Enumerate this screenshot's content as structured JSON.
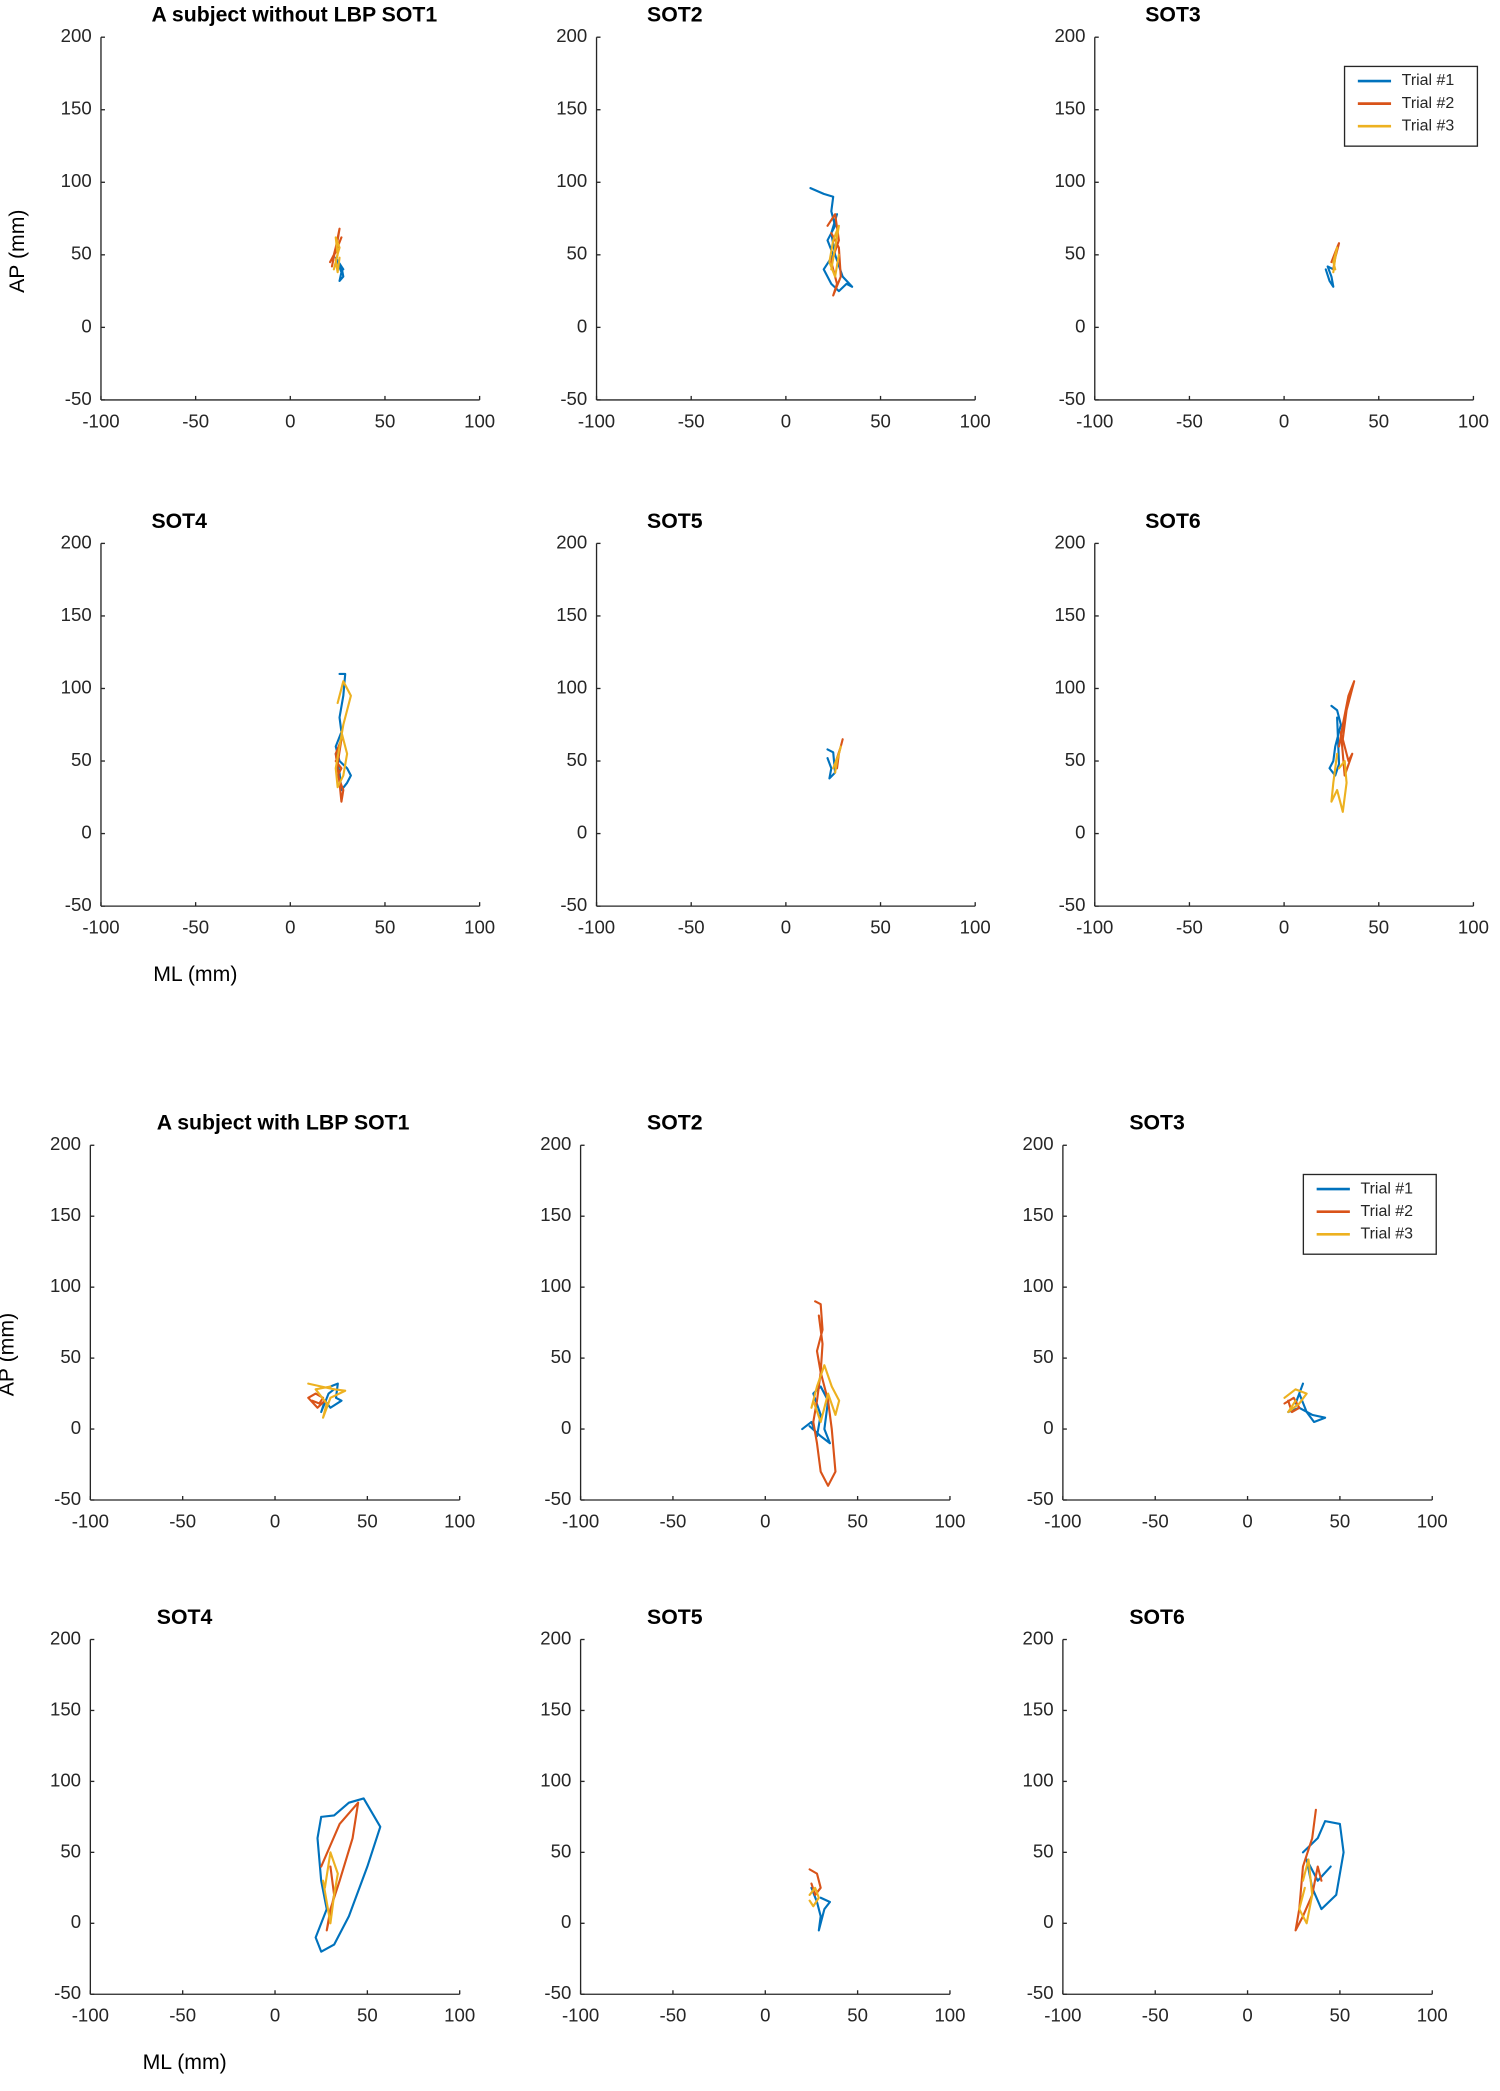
{
  "chart_data": [
    {
      "type": "line",
      "title": "A subject without LBP SOT1",
      "ylabel": "AP (mm)",
      "xlim": [
        -100,
        100
      ],
      "ylim": [
        -50,
        200
      ],
      "xticks": [
        -100,
        -50,
        0,
        50,
        100
      ],
      "yticks": [
        -50,
        0,
        50,
        100,
        150,
        200
      ],
      "series": [
        {
          "color": "#0072bd",
          "x": [
            25,
            27,
            26,
            28,
            27,
            24,
            26,
            28
          ],
          "values": [
            45,
            38,
            32,
            35,
            42,
            48,
            44,
            40
          ]
        },
        {
          "color": "#d95319",
          "x": [
            22,
            24,
            26,
            25,
            23,
            21,
            24,
            27
          ],
          "values": [
            42,
            55,
            68,
            60,
            50,
            45,
            52,
            62
          ]
        },
        {
          "color": "#edb120",
          "x": [
            23,
            25,
            24,
            26,
            24,
            25,
            26
          ],
          "values": [
            40,
            50,
            62,
            55,
            46,
            38,
            48
          ]
        }
      ]
    },
    {
      "type": "line",
      "title": "SOT2",
      "xlim": [
        -100,
        100
      ],
      "ylim": [
        -50,
        200
      ],
      "xticks": [
        -100,
        -50,
        0,
        50,
        100
      ],
      "yticks": [
        -50,
        0,
        50,
        100,
        150,
        200
      ],
      "series": [
        {
          "color": "#0072bd",
          "x": [
            13,
            20,
            25,
            24,
            26,
            22,
            25,
            20,
            24,
            28,
            32,
            35,
            30,
            26,
            24,
            27
          ],
          "values": [
            96,
            92,
            90,
            80,
            70,
            60,
            50,
            40,
            30,
            25,
            30,
            28,
            35,
            50,
            65,
            78
          ]
        },
        {
          "color": "#d95319",
          "x": [
            22,
            26,
            28,
            24,
            27,
            25,
            29,
            28,
            24
          ],
          "values": [
            70,
            78,
            60,
            45,
            30,
            22,
            35,
            55,
            65
          ]
        },
        {
          "color": "#edb120",
          "x": [
            24,
            26,
            28,
            25,
            23,
            26,
            28
          ],
          "values": [
            40,
            55,
            70,
            60,
            45,
            35,
            50
          ]
        }
      ]
    },
    {
      "type": "line",
      "title": "SOT3",
      "legend": "upper right",
      "xlim": [
        -100,
        100
      ],
      "ylim": [
        -50,
        200
      ],
      "xticks": [
        -100,
        -50,
        0,
        50,
        100
      ],
      "yticks": [
        -50,
        0,
        50,
        100,
        150,
        200
      ],
      "series": [
        {
          "name": "Trial #1",
          "color": "#0072bd",
          "x": [
            22,
            24,
            26,
            25,
            23,
            26
          ],
          "values": [
            40,
            32,
            28,
            35,
            42,
            40
          ]
        },
        {
          "name": "Trial #2",
          "color": "#d95319",
          "x": [
            25,
            28,
            29,
            27,
            26
          ],
          "values": [
            45,
            55,
            58,
            48,
            40
          ]
        },
        {
          "name": "Trial #3",
          "color": "#edb120",
          "x": [
            26,
            27,
            28,
            26,
            27
          ],
          "values": [
            38,
            48,
            55,
            45,
            40
          ]
        }
      ]
    },
    {
      "type": "line",
      "title": "SOT4",
      "xlabel": "ML (mm)",
      "xlim": [
        -100,
        100
      ],
      "ylim": [
        -50,
        200
      ],
      "xticks": [
        -100,
        -50,
        0,
        50,
        100
      ],
      "yticks": [
        -50,
        0,
        50,
        100,
        150,
        200
      ],
      "series": [
        {
          "color": "#0072bd",
          "x": [
            26,
            29,
            28,
            26,
            27,
            24,
            26,
            30,
            32,
            30,
            27,
            26,
            24
          ],
          "values": [
            110,
            110,
            95,
            80,
            70,
            60,
            50,
            45,
            40,
            35,
            30,
            42,
            55
          ]
        },
        {
          "color": "#d95319",
          "x": [
            24,
            27,
            25,
            28,
            27,
            26,
            24,
            27,
            25
          ],
          "values": [
            50,
            45,
            40,
            30,
            22,
            35,
            55,
            65,
            48
          ]
        },
        {
          "color": "#edb120",
          "x": [
            25,
            28,
            32,
            30,
            28,
            26,
            24,
            25,
            28,
            30,
            27
          ],
          "values": [
            90,
            105,
            95,
            85,
            75,
            60,
            45,
            32,
            40,
            55,
            70
          ]
        }
      ]
    },
    {
      "type": "line",
      "title": "SOT5",
      "xlim": [
        -100,
        100
      ],
      "ylim": [
        -50,
        200
      ],
      "xticks": [
        -100,
        -50,
        0,
        50,
        100
      ],
      "yticks": [
        -50,
        0,
        50,
        100,
        150,
        200
      ],
      "series": [
        {
          "color": "#0072bd",
          "x": [
            22,
            24,
            23,
            26,
            25,
            22
          ],
          "values": [
            52,
            45,
            38,
            42,
            56,
            58
          ]
        },
        {
          "color": "#d95319",
          "x": [
            26,
            29,
            30,
            28,
            27
          ],
          "values": [
            48,
            60,
            65,
            55,
            45
          ]
        },
        {
          "color": "#edb120",
          "x": [
            25,
            28,
            29,
            27,
            26
          ],
          "values": [
            45,
            55,
            60,
            50,
            42
          ]
        }
      ]
    },
    {
      "type": "line",
      "title": "SOT6",
      "xlim": [
        -100,
        100
      ],
      "ylim": [
        -50,
        200
      ],
      "xticks": [
        -100,
        -50,
        0,
        50,
        100
      ],
      "yticks": [
        -50,
        0,
        50,
        100,
        150,
        200
      ],
      "series": [
        {
          "color": "#0072bd",
          "x": [
            25,
            28,
            30,
            27,
            26,
            24,
            27,
            29,
            28
          ],
          "values": [
            88,
            85,
            75,
            60,
            50,
            45,
            40,
            48,
            80
          ]
        },
        {
          "color": "#d95319",
          "x": [
            29,
            31,
            34,
            37,
            33,
            31,
            34,
            36,
            32,
            30
          ],
          "values": [
            60,
            75,
            95,
            105,
            85,
            65,
            50,
            55,
            40,
            70
          ]
        },
        {
          "color": "#edb120",
          "x": [
            28,
            26,
            25,
            28,
            31,
            33,
            32,
            29
          ],
          "values": [
            55,
            35,
            22,
            30,
            15,
            35,
            50,
            45
          ]
        }
      ]
    },
    {
      "type": "line",
      "title": "A subject with LBP SOT1",
      "ylabel": "AP (mm)",
      "xlim": [
        -100,
        100
      ],
      "ylim": [
        -50,
        200
      ],
      "xticks": [
        -100,
        -50,
        0,
        50,
        100
      ],
      "yticks": [
        -50,
        0,
        50,
        100,
        150,
        200
      ],
      "series": [
        {
          "color": "#0072bd",
          "x": [
            30,
            34,
            33,
            36,
            30,
            27,
            25,
            29,
            32
          ],
          "values": [
            30,
            32,
            22,
            20,
            15,
            20,
            12,
            25,
            28
          ]
        },
        {
          "color": "#d95319",
          "x": [
            20,
            24,
            26,
            22,
            18,
            23,
            27
          ],
          "values": [
            20,
            18,
            22,
            25,
            22,
            15,
            20
          ]
        },
        {
          "color": "#edb120",
          "x": [
            18,
            25,
            32,
            38,
            30,
            26,
            28,
            22,
            30
          ],
          "values": [
            32,
            30,
            28,
            27,
            22,
            8,
            18,
            28,
            30
          ]
        }
      ]
    },
    {
      "type": "line",
      "title": "SOT2",
      "xlim": [
        -100,
        100
      ],
      "ylim": [
        -50,
        200
      ],
      "xticks": [
        -100,
        -50,
        0,
        50,
        100
      ],
      "yticks": [
        -50,
        0,
        50,
        100,
        150,
        200
      ],
      "series": [
        {
          "color": "#0072bd",
          "x": [
            20,
            25,
            28,
            30,
            26,
            30,
            34,
            32,
            35,
            30,
            24
          ],
          "values": [
            0,
            5,
            -5,
            10,
            25,
            30,
            20,
            0,
            -10,
            -5,
            2
          ]
        },
        {
          "color": "#d95319",
          "x": [
            27,
            30,
            31,
            28,
            30,
            28,
            26,
            28,
            30,
            34,
            38,
            36,
            34,
            30,
            31,
            29
          ],
          "values": [
            90,
            88,
            70,
            55,
            40,
            20,
            5,
            -10,
            -30,
            -40,
            -30,
            0,
            20,
            40,
            60,
            80
          ]
        },
        {
          "color": "#edb120",
          "x": [
            25,
            28,
            32,
            36,
            40,
            38,
            34,
            30,
            26
          ],
          "values": [
            15,
            30,
            45,
            30,
            20,
            10,
            25,
            5,
            20
          ]
        }
      ]
    },
    {
      "type": "line",
      "title": "SOT3",
      "legend": "upper right",
      "xlim": [
        -100,
        100
      ],
      "ylim": [
        -50,
        200
      ],
      "xticks": [
        -100,
        -50,
        0,
        50,
        100
      ],
      "yticks": [
        -50,
        0,
        50,
        100,
        150,
        200
      ],
      "series": [
        {
          "name": "Trial #1",
          "color": "#0072bd",
          "x": [
            22,
            28,
            35,
            42,
            36,
            32,
            28,
            30,
            26
          ],
          "values": [
            12,
            15,
            10,
            8,
            5,
            12,
            25,
            32,
            18
          ]
        },
        {
          "name": "Trial #2",
          "color": "#d95319",
          "x": [
            20,
            25,
            28,
            24,
            22
          ],
          "values": [
            18,
            22,
            15,
            12,
            20
          ]
        },
        {
          "name": "Trial #3",
          "color": "#edb120",
          "x": [
            20,
            26,
            32,
            28,
            22,
            26
          ],
          "values": [
            22,
            28,
            25,
            18,
            12,
            20
          ]
        }
      ]
    },
    {
      "type": "line",
      "title": "SOT4",
      "xlabel": "ML (mm)",
      "xlim": [
        -100,
        100
      ],
      "ylim": [
        -50,
        200
      ],
      "xticks": [
        -100,
        -50,
        0,
        50,
        100
      ],
      "yticks": [
        -50,
        0,
        50,
        100,
        150,
        200
      ],
      "series": [
        {
          "color": "#0072bd",
          "x": [
            25,
            32,
            40,
            48,
            57,
            50,
            40,
            32,
            25,
            22,
            28,
            25,
            23,
            25
          ],
          "values": [
            75,
            76,
            85,
            88,
            68,
            40,
            5,
            -15,
            -20,
            -10,
            10,
            30,
            60,
            75
          ]
        },
        {
          "color": "#d95319",
          "x": [
            25,
            30,
            35,
            45,
            42,
            35,
            30,
            28,
            32,
            30
          ],
          "values": [
            40,
            55,
            70,
            85,
            60,
            30,
            10,
            -5,
            20,
            40
          ]
        },
        {
          "color": "#edb120",
          "x": [
            26,
            28,
            30,
            32,
            34,
            30,
            27
          ],
          "values": [
            30,
            15,
            0,
            20,
            35,
            50,
            25
          ]
        }
      ]
    },
    {
      "type": "line",
      "title": "SOT5",
      "xlim": [
        -100,
        100
      ],
      "ylim": [
        -50,
        200
      ],
      "xticks": [
        -100,
        -50,
        0,
        50,
        100
      ],
      "yticks": [
        -50,
        0,
        50,
        100,
        150,
        200
      ],
      "series": [
        {
          "color": "#0072bd",
          "x": [
            25,
            28,
            30,
            29,
            32,
            35,
            30
          ],
          "values": [
            25,
            15,
            5,
            -5,
            10,
            15,
            18
          ]
        },
        {
          "color": "#d95319",
          "x": [
            24,
            28,
            30,
            27,
            25
          ],
          "values": [
            38,
            35,
            25,
            20,
            28
          ]
        },
        {
          "color": "#edb120",
          "x": [
            24,
            27,
            29,
            26,
            24
          ],
          "values": [
            20,
            25,
            18,
            12,
            16
          ]
        }
      ]
    },
    {
      "type": "line",
      "title": "SOT6",
      "xlim": [
        -100,
        100
      ],
      "ylim": [
        -50,
        200
      ],
      "xticks": [
        -100,
        -50,
        0,
        50,
        100
      ],
      "yticks": [
        -50,
        0,
        50,
        100,
        150,
        200
      ],
      "series": [
        {
          "color": "#0072bd",
          "x": [
            30,
            38,
            42,
            50,
            52,
            48,
            40,
            35,
            32,
            38,
            45
          ],
          "values": [
            50,
            60,
            72,
            70,
            50,
            20,
            10,
            25,
            45,
            30,
            40
          ]
        },
        {
          "color": "#d95319",
          "x": [
            37,
            35,
            30,
            28,
            26,
            30,
            35,
            38,
            40
          ],
          "values": [
            80,
            60,
            40,
            10,
            -5,
            5,
            20,
            40,
            30
          ]
        },
        {
          "color": "#edb120",
          "x": [
            30,
            33,
            35,
            32,
            28,
            31
          ],
          "values": [
            30,
            45,
            20,
            0,
            10,
            25
          ]
        }
      ]
    }
  ]
}
